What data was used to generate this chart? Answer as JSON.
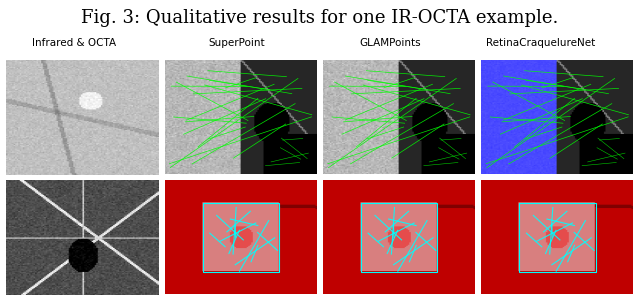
{
  "title_bold": "Fig. 3:",
  "title_normal": " Qualitative results for one IR-OCTA example.",
  "col_labels": [
    "Infrared & OCTA",
    "SuperPoint",
    "GLAMPoints",
    "RetinaCraquelureNet"
  ],
  "figsize": [
    6.4,
    3.01
  ],
  "dpi": 100,
  "bg_color": "#ffffff",
  "title_fontsize": 13,
  "label_fontsize": 7.5,
  "grid_layout": {
    "n_rows": 2,
    "n_cols": 4,
    "col0_spans_rows": true
  },
  "cell_colors": {
    "row0_col1_left": "#b0b0b0",
    "row0_col1_right": "#1a1a1a",
    "row0_col1_br": "#1a3a1a",
    "row0_col2_left": "#b0b0b0",
    "row0_col2_right": "#1a1a1a",
    "row0_col3_left": "#2020a0",
    "row0_col3_right": "#1a1a1a",
    "row1_col1_bg": "#cc0000",
    "row1_col1_inner": "#dddddd",
    "row1_col2_bg": "#cc0000",
    "row1_col2_inner": "#dddddd",
    "row1_col3_bg": "#cc0000",
    "row1_col3_inner": "#dddddd"
  },
  "green_line_color": "#00ff00",
  "blue_line_color": "#4444ff",
  "cyan_color": "#00ffff",
  "red_bg": "#bb0000"
}
